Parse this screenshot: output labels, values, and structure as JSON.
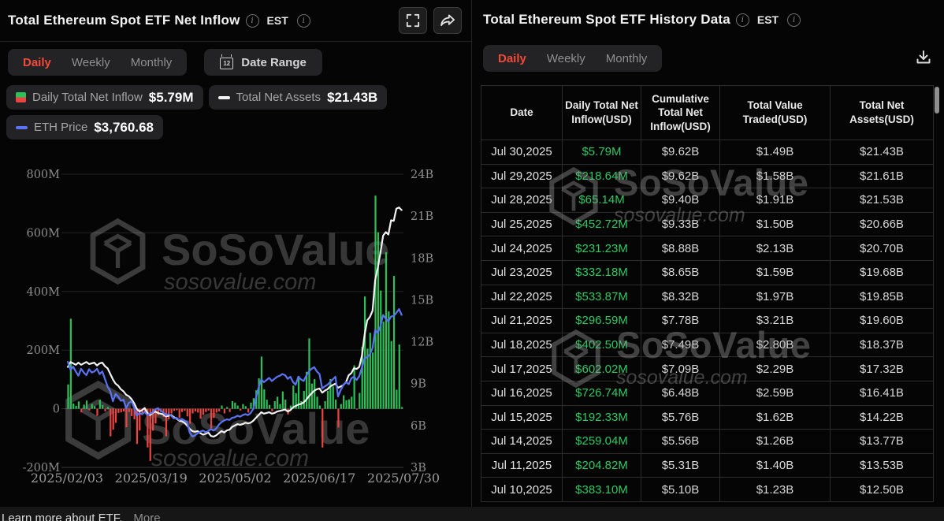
{
  "watermark": {
    "brand": "SoSoValue",
    "domain": "sosovalue.com"
  },
  "left_panel": {
    "title": "Total Ethereum Spot ETF Net Inflow",
    "est_label": "EST",
    "tabs": [
      {
        "label": "Daily",
        "active": true
      },
      {
        "label": "Weekly",
        "active": false
      },
      {
        "label": "Monthly",
        "active": false
      }
    ],
    "date_range_label": "Date Range",
    "legend": [
      {
        "label": "Daily Total Net Inflow",
        "value": "$5.79M",
        "swatch": "split"
      },
      {
        "label": "Total Net Assets",
        "value": "$21.43B",
        "swatch": "white"
      },
      {
        "label": "ETH Price",
        "value": "$3,760.68",
        "swatch": "blue"
      }
    ]
  },
  "right_panel": {
    "title": "Total Ethereum Spot ETF History Data",
    "est_label": "EST",
    "tabs": [
      {
        "label": "Daily",
        "active": true
      },
      {
        "label": "Weekly",
        "active": false
      },
      {
        "label": "Monthly",
        "active": false
      }
    ],
    "table": {
      "columns": [
        "Date",
        "Daily Total Net Inflow(USD)",
        "Cumulative Total Net Inflow(USD)",
        "Total Value Traded(USD)",
        "Total Net Assets(USD)"
      ],
      "rows": [
        [
          "Jul 30,2025",
          "$5.79M",
          "$9.62B",
          "$1.49B",
          "$21.43B"
        ],
        [
          "Jul 29,2025",
          "$218.64M",
          "$9.62B",
          "$1.58B",
          "$21.61B"
        ],
        [
          "Jul 28,2025",
          "$65.14M",
          "$9.40B",
          "$1.91B",
          "$21.53B"
        ],
        [
          "Jul 25,2025",
          "$452.72M",
          "$9.33B",
          "$1.50B",
          "$20.66B"
        ],
        [
          "Jul 24,2025",
          "$231.23M",
          "$8.88B",
          "$2.13B",
          "$20.70B"
        ],
        [
          "Jul 23,2025",
          "$332.18M",
          "$8.65B",
          "$1.59B",
          "$19.68B"
        ],
        [
          "Jul 22,2025",
          "$533.87M",
          "$8.32B",
          "$1.97B",
          "$19.85B"
        ],
        [
          "Jul 21,2025",
          "$296.59M",
          "$7.78B",
          "$3.21B",
          "$19.60B"
        ],
        [
          "Jul 18,2025",
          "$402.50M",
          "$7.49B",
          "$2.80B",
          "$18.37B"
        ],
        [
          "Jul 17,2025",
          "$602.02M",
          "$7.09B",
          "$2.29B",
          "$17.32B"
        ],
        [
          "Jul 16,2025",
          "$726.74M",
          "$6.48B",
          "$2.59B",
          "$16.41B"
        ],
        [
          "Jul 15,2025",
          "$192.33M",
          "$5.76B",
          "$1.62B",
          "$14.22B"
        ],
        [
          "Jul 14,2025",
          "$259.04M",
          "$5.56B",
          "$1.26B",
          "$13.77B"
        ],
        [
          "Jul 11,2025",
          "$204.82M",
          "$5.31B",
          "$1.40B",
          "$13.53B"
        ],
        [
          "Jul 10,2025",
          "$383.10M",
          "$5.10B",
          "$1.23B",
          "$12.50B"
        ]
      ]
    }
  },
  "footer": {
    "text": "Learn more about ETF.",
    "more_label": "More"
  },
  "chart_data": {
    "type": "combo",
    "title": "Total Ethereum Spot ETF Net Inflow",
    "x_range": [
      "2025-02-03",
      "2025-07-30"
    ],
    "x_tick_labels": [
      "2025/02/03",
      "2025/03/19",
      "2025/05/02",
      "2025/06/17",
      "2025/07/30"
    ],
    "grid": true,
    "left_axis": {
      "unit": "USD millions",
      "min": -200,
      "max": 800,
      "tick_labels": [
        "800M",
        "600M",
        "400M",
        "200M",
        "0",
        "-200M"
      ],
      "tick_values": [
        800,
        600,
        400,
        200,
        0,
        -200
      ]
    },
    "right_axis": {
      "unit": "USD billions",
      "min": 3,
      "max": 24,
      "tick_labels": [
        "24B",
        "21B",
        "18B",
        "15B",
        "12B",
        "9B",
        "6B",
        "3B"
      ],
      "tick_values": [
        24,
        21,
        18,
        15,
        12,
        9,
        6,
        3
      ]
    },
    "series": [
      {
        "name": "Daily Total Net Inflow",
        "type": "bar",
        "axis": "left",
        "unit": "USD millions",
        "color_positive": "#2bc158",
        "color_negative": "#ec4440",
        "values": [
          83,
          307,
          18,
          10,
          25,
          -12,
          14,
          28,
          -6,
          16,
          9,
          -24,
          31,
          12,
          -9,
          6,
          -94,
          -71,
          -48,
          -14,
          -12,
          -9,
          -63,
          -11,
          -25,
          -36,
          -120,
          -74,
          -21,
          -11,
          -132,
          -178,
          -75,
          -50,
          -22,
          -11,
          -28,
          -94,
          -36,
          -16,
          -7,
          -5,
          -31,
          -11,
          -7,
          -26,
          -51,
          -16,
          -9,
          -13,
          -34,
          -21,
          -11,
          -6,
          -66,
          -31,
          -13,
          -9,
          11,
          -16,
          6,
          -11,
          26,
          21,
          11,
          -6,
          16,
          9,
          -13,
          21,
          36,
          63,
          104,
          178,
          66,
          31,
          13,
          -9,
          26,
          41,
          16,
          59,
          31,
          -19,
          11,
          79,
          53,
          112,
          26,
          61,
          126,
          240,
          86,
          101,
          41,
          11,
          -132,
          26,
          61,
          101,
          76,
          31,
          -64,
          16,
          46,
          29,
          32,
          41,
          148,
          -2,
          54,
          211,
          383,
          205,
          259,
          192,
          727,
          602,
          403,
          297,
          534,
          332,
          231,
          453,
          65,
          219,
          6
        ]
      },
      {
        "name": "Total Net Assets",
        "type": "line",
        "axis": "right",
        "unit": "USD billions",
        "color": "#f2f2f2",
        "values": [
          10.2,
          10.55,
          10.45,
          10.35,
          10.5,
          10.35,
          10.45,
          10.55,
          10.4,
          10.45,
          10.5,
          10.3,
          10.45,
          10.5,
          10.25,
          10.1,
          9.7,
          9.3,
          9.0,
          8.85,
          8.6,
          8.45,
          8.2,
          8.1,
          7.9,
          7.6,
          7.2,
          7.0,
          7.1,
          7.25,
          6.9,
          6.75,
          6.9,
          7.0,
          6.9,
          6.85,
          6.8,
          6.65,
          6.7,
          6.75,
          6.6,
          6.5,
          6.35,
          6.3,
          6.2,
          6.0,
          5.75,
          5.6,
          5.55,
          5.6,
          5.45,
          5.35,
          5.4,
          5.5,
          5.25,
          5.2,
          5.3,
          5.45,
          5.6,
          5.5,
          5.65,
          5.7,
          5.9,
          6.0,
          6.1,
          6.05,
          6.1,
          6.2,
          6.15,
          6.2,
          6.35,
          6.55,
          6.75,
          6.95,
          6.85,
          6.9,
          6.95,
          6.85,
          6.9,
          7.0,
          7.05,
          7.1,
          7.15,
          7.0,
          7.1,
          7.3,
          7.4,
          7.5,
          7.55,
          7.65,
          7.85,
          8.1,
          8.3,
          8.5,
          8.6,
          8.65,
          8.35,
          8.5,
          8.6,
          8.8,
          8.9,
          9.0,
          8.7,
          8.8,
          8.9,
          9.1,
          9.6,
          9.75,
          10.1,
          10.05,
          10.2,
          11.0,
          12.5,
          13.53,
          13.77,
          14.22,
          16.41,
          17.32,
          18.37,
          19.6,
          19.85,
          19.68,
          20.7,
          20.66,
          21.53,
          21.61,
          21.43
        ]
      },
      {
        "name": "ETH Price",
        "type": "line",
        "axis": "custom",
        "unit": "USD",
        "color": "#5b74f5",
        "ylim": [
          900,
          6400
        ],
        "values": [
          2880,
          2730,
          2790,
          2700,
          2620,
          2750,
          2680,
          2630,
          2740,
          2680,
          2700,
          2750,
          2650,
          2700,
          2560,
          2420,
          2330,
          2140,
          2280,
          2230,
          2150,
          2170,
          2010,
          2110,
          2140,
          2020,
          1870,
          1920,
          1900,
          1940,
          1880,
          1910,
          1930,
          1990,
          2010,
          1970,
          1930,
          1880,
          1900,
          1870,
          1820,
          1830,
          1790,
          1810,
          1780,
          1750,
          1550,
          1480,
          1500,
          1540,
          1570,
          1590,
          1560,
          1580,
          1620,
          1590,
          1630,
          1700,
          1750,
          1780,
          1800,
          1790,
          1830,
          1840,
          1870,
          1850,
          1880,
          1900,
          1880,
          1920,
          2000,
          2200,
          2400,
          2550,
          2500,
          2540,
          2580,
          2520,
          2560,
          2600,
          2620,
          2650,
          2630,
          2560,
          2600,
          2500,
          2450,
          2600,
          2550,
          2520,
          2620,
          2700,
          2750,
          2780,
          2700,
          2650,
          2380,
          2420,
          2450,
          2500,
          2550,
          2600,
          2230,
          2350,
          2450,
          2500,
          2460,
          2570,
          2600,
          2540,
          2610,
          2770,
          2950,
          2970,
          3020,
          3140,
          3480,
          3420,
          3550,
          3760,
          3690,
          3640,
          3730,
          3740,
          3800,
          3870,
          3761
        ]
      }
    ]
  }
}
